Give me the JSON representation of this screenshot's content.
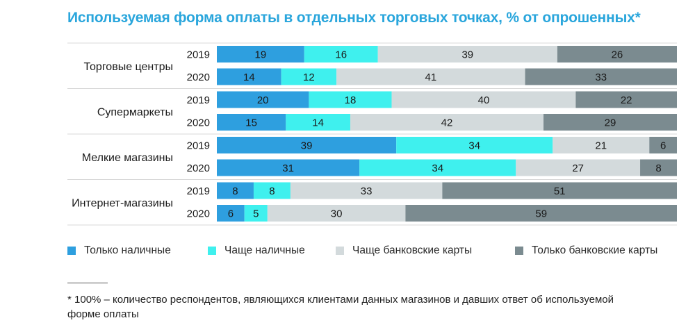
{
  "chart_data": {
    "type": "bar",
    "orientation": "horizontal",
    "stacked": true,
    "title": "Используемая форма оплаты  в отдельных торговых точках,  % от опрошенных*",
    "groups": [
      {
        "name": "Торговые центры",
        "rows": [
          {
            "year": "2019",
            "values": [
              19,
              16,
              39,
              26
            ]
          },
          {
            "year": "2020",
            "values": [
              14,
              12,
              41,
              33
            ]
          }
        ]
      },
      {
        "name": "Супермаркеты",
        "rows": [
          {
            "year": "2019",
            "values": [
              20,
              18,
              40,
              22
            ]
          },
          {
            "year": "2020",
            "values": [
              15,
              14,
              42,
              29
            ]
          }
        ]
      },
      {
        "name": "Мелкие магазины",
        "rows": [
          {
            "year": "2019",
            "values": [
              39,
              34,
              21,
              6
            ]
          },
          {
            "year": "2020",
            "values": [
              31,
              34,
              27,
              8
            ]
          }
        ]
      },
      {
        "name": "Интернет-магазины",
        "rows": [
          {
            "year": "2019",
            "values": [
              8,
              8,
              33,
              51
            ]
          },
          {
            "year": "2020",
            "values": [
              6,
              5,
              30,
              59
            ]
          }
        ]
      }
    ],
    "series": [
      {
        "name": "Только наличные",
        "color": "#2e9fdf"
      },
      {
        "name": "Чаще наличные",
        "color": "#3ff0ee"
      },
      {
        "name": "Чаще банковские карты",
        "color": "#d3dadc"
      },
      {
        "name": "Только банковские карты",
        "color": "#7b8b90"
      }
    ],
    "xlim": [
      0,
      100
    ],
    "legend_position": "bottom"
  },
  "footnote": "* 100% – количество респондентов, являющихся клиентами данных магазинов и давших ответ об используемой форме оплаты"
}
